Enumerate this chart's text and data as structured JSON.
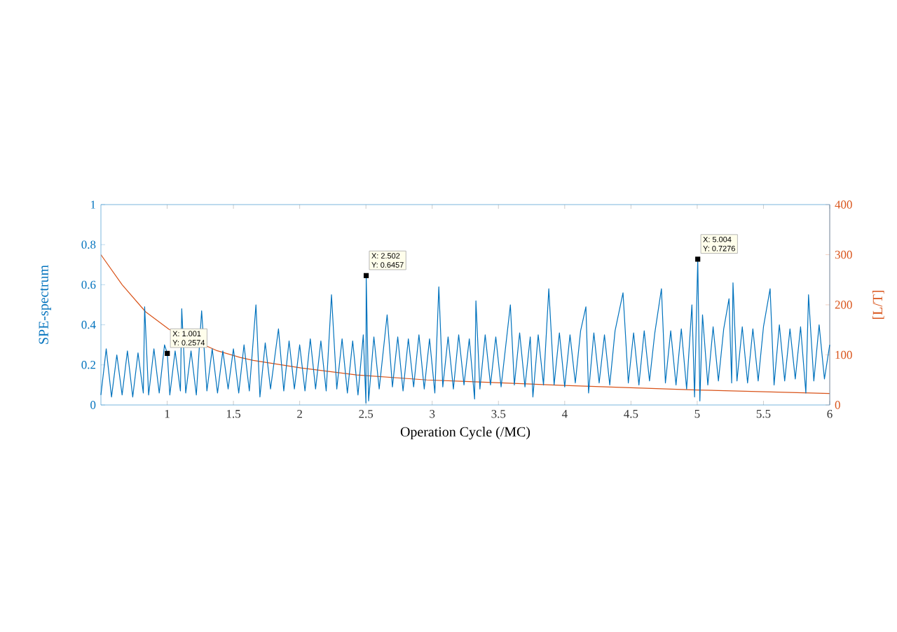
{
  "chart_data": {
    "type": "line",
    "xlabel": "Operation Cycle (/MC)",
    "ylabel": "SPE-spectrum",
    "y2label": "[L/T]",
    "xlim": [
      0.5,
      6
    ],
    "xticks": [
      1,
      1.5,
      2,
      2.5,
      3,
      3.5,
      4,
      4.5,
      5,
      5.5,
      6
    ],
    "ylim": [
      0,
      1
    ],
    "yticks": [
      0,
      0.2,
      0.4,
      0.6,
      0.8,
      1
    ],
    "y2lim": [
      0,
      400
    ],
    "y2ticks": [
      0,
      100,
      200,
      300,
      400
    ],
    "grid": false,
    "marker": "none",
    "line_style": "solid",
    "series": [
      {
        "color": "#0072bd",
        "x": [
          0.5,
          0.54,
          0.58,
          0.62,
          0.66,
          0.7,
          0.74,
          0.78,
          0.82,
          0.83,
          0.86,
          0.9,
          0.94,
          0.98,
          1.001,
          1.02,
          1.06,
          1.1,
          1.11,
          1.14,
          1.18,
          1.22,
          1.26,
          1.3,
          1.34,
          1.38,
          1.42,
          1.46,
          1.5,
          1.54,
          1.58,
          1.62,
          1.67,
          1.7,
          1.74,
          1.78,
          1.84,
          1.88,
          1.92,
          1.96,
          2.0,
          2.04,
          2.08,
          2.12,
          2.16,
          2.2,
          2.24,
          2.28,
          2.32,
          2.36,
          2.4,
          2.44,
          2.48,
          2.5,
          2.502,
          2.52,
          2.56,
          2.6,
          2.66,
          2.7,
          2.74,
          2.78,
          2.82,
          2.86,
          2.9,
          2.94,
          2.98,
          3.02,
          3.05,
          3.08,
          3.12,
          3.16,
          3.2,
          3.24,
          3.28,
          3.32,
          3.33,
          3.36,
          3.4,
          3.44,
          3.48,
          3.52,
          3.59,
          3.62,
          3.66,
          3.7,
          3.74,
          3.76,
          3.8,
          3.84,
          3.88,
          3.92,
          3.96,
          4.0,
          4.04,
          4.08,
          4.12,
          4.16,
          4.18,
          4.22,
          4.26,
          4.3,
          4.34,
          4.38,
          4.44,
          4.48,
          4.52,
          4.56,
          4.6,
          4.64,
          4.68,
          4.73,
          4.76,
          4.8,
          4.84,
          4.88,
          4.92,
          4.96,
          4.98,
          5.004,
          5.02,
          5.04,
          5.08,
          5.12,
          5.16,
          5.2,
          5.24,
          5.26,
          5.27,
          5.3,
          5.34,
          5.38,
          5.42,
          5.46,
          5.5,
          5.55,
          5.58,
          5.62,
          5.66,
          5.7,
          5.74,
          5.78,
          5.82,
          5.84,
          5.88,
          5.92,
          5.96,
          6.0
        ],
        "values": [
          0.05,
          0.28,
          0.04,
          0.25,
          0.05,
          0.27,
          0.04,
          0.26,
          0.06,
          0.49,
          0.05,
          0.28,
          0.06,
          0.3,
          0.2574,
          0.05,
          0.27,
          0.07,
          0.48,
          0.06,
          0.27,
          0.05,
          0.47,
          0.07,
          0.28,
          0.06,
          0.27,
          0.08,
          0.28,
          0.06,
          0.3,
          0.07,
          0.5,
          0.04,
          0.31,
          0.08,
          0.38,
          0.07,
          0.32,
          0.08,
          0.3,
          0.07,
          0.33,
          0.08,
          0.32,
          0.07,
          0.55,
          0.08,
          0.33,
          0.06,
          0.32,
          0.05,
          0.35,
          0.01,
          0.6457,
          0.02,
          0.34,
          0.08,
          0.45,
          0.09,
          0.34,
          0.07,
          0.33,
          0.09,
          0.35,
          0.08,
          0.33,
          0.06,
          0.59,
          0.09,
          0.34,
          0.08,
          0.35,
          0.1,
          0.33,
          0.03,
          0.52,
          0.08,
          0.35,
          0.1,
          0.34,
          0.09,
          0.5,
          0.1,
          0.36,
          0.09,
          0.34,
          0.04,
          0.35,
          0.1,
          0.58,
          0.1,
          0.36,
          0.09,
          0.35,
          0.11,
          0.37,
          0.49,
          0.06,
          0.36,
          0.11,
          0.35,
          0.1,
          0.37,
          0.56,
          0.11,
          0.36,
          0.1,
          0.37,
          0.12,
          0.36,
          0.58,
          0.11,
          0.37,
          0.1,
          0.38,
          0.08,
          0.5,
          0.04,
          0.7276,
          0.02,
          0.45,
          0.1,
          0.39,
          0.12,
          0.38,
          0.53,
          0.11,
          0.61,
          0.12,
          0.39,
          0.11,
          0.38,
          0.12,
          0.39,
          0.58,
          0.1,
          0.4,
          0.12,
          0.38,
          0.13,
          0.39,
          0.06,
          0.55,
          0.12,
          0.4,
          0.13,
          0.3
        ]
      },
      {
        "color": "#d95319",
        "axis": "y2",
        "x": [
          0.5,
          0.66,
          0.837,
          1.014,
          1.37,
          1.55,
          1.65,
          2.01,
          2.43,
          2.96,
          3.25,
          4,
          5,
          6
        ],
        "values": [
          300,
          240,
          186,
          151,
          109,
          95,
          89,
          74,
          60,
          50,
          47,
          39,
          30,
          23
        ]
      }
    ],
    "annotations": [
      {
        "text": "X: 1.001",
        "x": 1.001,
        "y": 0.2574
      },
      {
        "text": "Y: 0.2574",
        "x": 1.001,
        "y": 0.2574
      },
      {
        "text": "X: 2.502",
        "x": 2.502,
        "y": 0.6457
      },
      {
        "text": "Y: 0.6457",
        "x": 2.502,
        "y": 0.6457
      },
      {
        "text": "X: 5.004",
        "x": 5.004,
        "y": 0.7276
      },
      {
        "text": "Y: 0.7276",
        "x": 5.004,
        "y": 0.7276
      }
    ]
  }
}
